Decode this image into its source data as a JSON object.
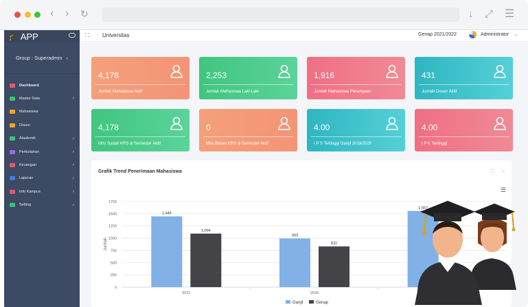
{
  "browser": {
    "url": ""
  },
  "app": {
    "title": "APP",
    "group": "Group : Superadmin"
  },
  "sidebar": {
    "items": [
      {
        "label": "Dashboard",
        "icon": "home-icon",
        "color": "#e8566e",
        "chevron": false
      },
      {
        "label": "Master Data",
        "icon": "list-icon",
        "color": "#3ec07e",
        "chevron": true
      },
      {
        "label": "Mahasiswa",
        "icon": "users-icon",
        "color": "#f5a623",
        "chevron": false
      },
      {
        "label": "Dosen",
        "icon": "user-icon",
        "color": "#f5a623",
        "chevron": false
      },
      {
        "label": "Akademik",
        "icon": "settings-icon",
        "color": "#3ec07e",
        "chevron": true
      },
      {
        "label": "Perkuliahan",
        "icon": "bank-icon",
        "color": "#9b6cd6",
        "chevron": true
      },
      {
        "label": "Keuangan",
        "icon": "money-icon",
        "color": "#e8566e",
        "chevron": true
      },
      {
        "label": "Laporan",
        "icon": "report-icon",
        "color": "#3f7de0",
        "chevron": true
      },
      {
        "label": "Info Kampus",
        "icon": "info-icon",
        "color": "#e8566e",
        "chevron": true
      },
      {
        "label": "Setting",
        "icon": "code-icon",
        "color": "#3ec07e",
        "chevron": true
      }
    ]
  },
  "topbar": {
    "title": "Universitas",
    "semester": "Genap 2021/2022",
    "user": "Administrator"
  },
  "cards": [
    {
      "value": "4,178",
      "label": "Jumlah Mahasiswa Aktif",
      "icon": "students-icon",
      "theme": "g-orange"
    },
    {
      "value": "2,253",
      "label": "Jumlah Mahasiswa Laki-Laki",
      "icon": "male-icon",
      "theme": "g-green"
    },
    {
      "value": "1,916",
      "label": "Jumlah Mahasiswa Perempuan",
      "icon": "female-icon",
      "theme": "g-red"
    },
    {
      "value": "431",
      "label": "Jumlah Dosen Aktif",
      "icon": "lecturer-icon",
      "theme": "g-teal"
    },
    {
      "value": "4,178",
      "label": "Mhs Sudah KRS di Semester Aktif",
      "icon": "students-icon",
      "theme": "g-green"
    },
    {
      "value": "0",
      "label": "Mhs Belum KRS di Semester Aktif",
      "icon": "students-icon",
      "theme": "g-orange"
    },
    {
      "value": "4.00",
      "label": "I P S Tertinggi Ganjil 2019/2020",
      "icon": "certificate-icon",
      "theme": "g-teal"
    },
    {
      "value": "4.00",
      "label": "I P K Tertinggi",
      "icon": "diploma-icon",
      "theme": "g-red"
    }
  ],
  "chart_panel": {
    "title": "Grafik Trend Penerimaan Mahasiswa"
  },
  "chart_data": {
    "type": "bar",
    "title": "Grafik Trend Penerimaan Mahasiswa",
    "categories": [
      "2021",
      "2020",
      ""
    ],
    "series": [
      {
        "name": "Ganjil",
        "color": "#82b1e8",
        "values": [
          1446,
          993,
          1557
        ]
      },
      {
        "name": "Genap",
        "color": "#434348",
        "values": [
          1094,
          832,
          null
        ]
      }
    ],
    "ylabel": "Jumlah",
    "ylim": [
      0,
      1750
    ],
    "yticks": [
      0,
      250,
      500,
      750,
      1000,
      1250,
      1500,
      1750
    ],
    "grid": true,
    "legend": "bottom-center"
  }
}
